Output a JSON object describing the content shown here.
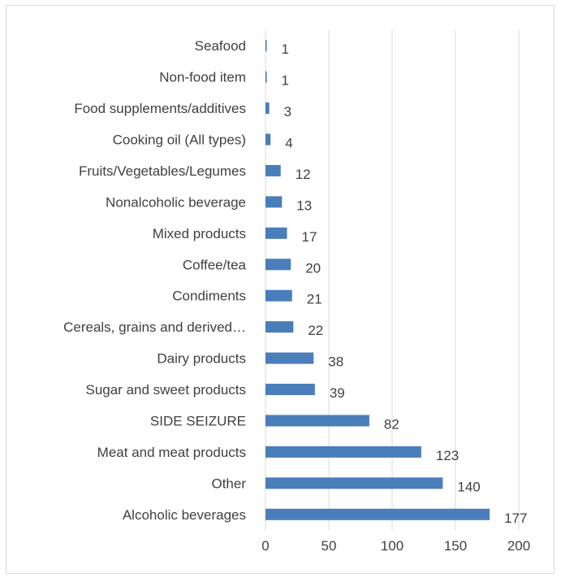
{
  "chart_data": {
    "type": "bar",
    "orientation": "horizontal",
    "categories": [
      "Seafood",
      "Non-food item",
      "Food supplements/additives",
      "Cooking oil (All types)",
      "Fruits/Vegetables/Legumes",
      "Nonalcoholic beverage",
      "Mixed products",
      "Coffee/tea",
      "Condiments",
      "Cereals, grains and derived…",
      "Dairy products",
      "Sugar and sweet products",
      "SIDE SEIZURE",
      "Meat and meat products",
      "Other",
      "Alcoholic beverages"
    ],
    "values": [
      1,
      1,
      3,
      4,
      12,
      13,
      17,
      20,
      21,
      22,
      38,
      39,
      82,
      123,
      140,
      177
    ],
    "xlim": [
      0,
      200
    ],
    "xticks": [
      "0",
      "50",
      "100",
      "150",
      "200"
    ],
    "grid": true,
    "bar_color": "#4a7ebb",
    "gridline_color": "#d9d9d9",
    "title": "",
    "xlabel": "",
    "ylabel": ""
  }
}
